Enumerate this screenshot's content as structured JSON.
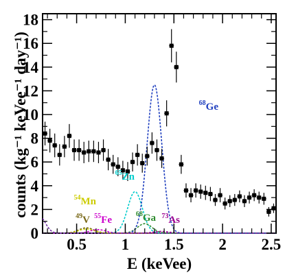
{
  "chart_data": {
    "type": "scatter",
    "xlabel": "E (keVee)",
    "ylabel": "counts (kg⁻¹ keVee⁻¹ day⁻¹)",
    "xlim": [
      0.15,
      2.55
    ],
    "ylim": [
      0,
      18.5
    ],
    "x_ticks": [
      0.5,
      1,
      1.5,
      2,
      2.5
    ],
    "x_tick_labels": [
      "0.5",
      "1",
      "1.5",
      "2",
      "2.5"
    ],
    "y_ticks": [
      0,
      2,
      4,
      6,
      8,
      10,
      12,
      14,
      16,
      18
    ],
    "y_tick_labels": [
      "0",
      "2",
      "4",
      "6",
      "8",
      "10",
      "12",
      "14",
      "16",
      "18"
    ],
    "grid": false,
    "legend": "none",
    "data_points": {
      "name": "",
      "color": "#000000",
      "x": [
        0.175,
        0.225,
        0.275,
        0.325,
        0.375,
        0.425,
        0.475,
        0.525,
        0.575,
        0.625,
        0.675,
        0.725,
        0.775,
        0.825,
        0.875,
        0.925,
        0.975,
        1.025,
        1.075,
        1.125,
        1.175,
        1.225,
        1.275,
        1.325,
        1.375,
        1.425,
        1.475,
        1.525,
        1.575,
        1.625,
        1.675,
        1.725,
        1.775,
        1.825,
        1.875,
        1.925,
        1.975,
        2.025,
        2.075,
        2.125,
        2.175,
        2.225,
        2.275,
        2.325,
        2.375,
        2.425,
        2.475,
        2.525
      ],
      "y": [
        8.4,
        7.8,
        7.4,
        6.6,
        7.3,
        8.2,
        7.0,
        7.0,
        6.8,
        6.9,
        6.9,
        6.8,
        7.0,
        6.2,
        5.8,
        5.6,
        5.3,
        5.2,
        6.0,
        6.6,
        5.9,
        6.5,
        7.6,
        7.0,
        6.3,
        10.1,
        15.8,
        14.0,
        5.8,
        3.6,
        3.2,
        3.6,
        3.5,
        3.4,
        3.3,
        2.8,
        3.2,
        2.5,
        2.7,
        2.8,
        3.1,
        2.7,
        3.0,
        3.2,
        3.0,
        2.9,
        1.8,
        2.1
      ],
      "yerr": [
        1.0,
        1.0,
        1.0,
        0.9,
        0.9,
        1.0,
        0.9,
        0.9,
        0.9,
        0.9,
        0.9,
        0.9,
        0.9,
        0.9,
        0.8,
        0.8,
        0.8,
        0.8,
        0.8,
        0.9,
        0.8,
        0.8,
        0.9,
        0.9,
        0.8,
        1.1,
        1.4,
        1.3,
        0.8,
        0.6,
        0.6,
        0.6,
        0.6,
        0.6,
        0.6,
        0.5,
        0.6,
        0.5,
        0.5,
        0.5,
        0.5,
        0.5,
        0.5,
        0.5,
        0.5,
        0.5,
        0.4,
        0.4
      ]
    },
    "peaks": [
      {
        "name": "V",
        "mass": "49",
        "color": "#7a6a1a",
        "mu": 0.6,
        "amp": 0.45,
        "sigma": 0.08
      },
      {
        "name": "Mn",
        "mass": "54",
        "color": "#cccc00",
        "mu": 0.6,
        "amp": 0.35,
        "sigma": 0.08
      },
      {
        "name": "Fe",
        "mass": "55",
        "color": "#cc00cc",
        "mu": 0.72,
        "amp": 0.3,
        "sigma": 0.08
      },
      {
        "name": "Zn",
        "mass": "65",
        "color": "#00cccc",
        "mu": 1.1,
        "amp": 3.5,
        "sigma": 0.075
      },
      {
        "name": "Ga",
        "mass": "68",
        "color": "#2e8b2e",
        "mu": 1.2,
        "amp": 0.8,
        "sigma": 0.075
      },
      {
        "name": "Ge",
        "mass": "68",
        "color": "#1f3fbf",
        "mu": 1.3,
        "amp": 12.5,
        "sigma": 0.075
      },
      {
        "name": "As",
        "mass": "73",
        "color": "#9a0090",
        "mu": 1.37,
        "amp": 0.15,
        "sigma": 0.08
      }
    ],
    "left_edge_peak": {
      "color": "#7030a0",
      "amp": 1.4,
      "sigma": 0.06,
      "mu": 0.12
    }
  }
}
